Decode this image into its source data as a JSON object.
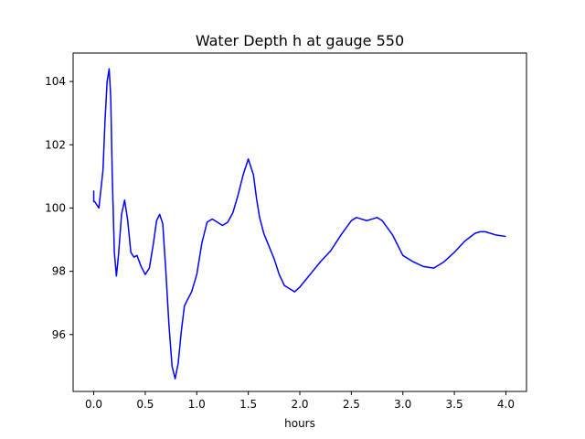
{
  "chart_data": {
    "type": "line",
    "title": "Water Depth h at gauge 550",
    "xlabel": "hours",
    "ylabel": "",
    "xlim": [
      -0.2,
      4.2
    ],
    "ylim": [
      94.2,
      104.9
    ],
    "xticks": [
      0.0,
      0.5,
      1.0,
      1.5,
      2.0,
      2.5,
      3.0,
      3.5,
      4.0
    ],
    "xtick_labels": [
      "0.0",
      "0.5",
      "1.0",
      "1.5",
      "2.0",
      "2.5",
      "3.0",
      "3.5",
      "4.0"
    ],
    "yticks": [
      96,
      98,
      100,
      102,
      104
    ],
    "ytick_labels": [
      "96",
      "98",
      "100",
      "102",
      "104"
    ],
    "grid": false,
    "color": "#0000ff",
    "series": [
      {
        "name": "",
        "x": [
          0.0,
          0.0,
          0.01,
          0.03,
          0.05,
          0.07,
          0.09,
          0.11,
          0.13,
          0.15,
          0.165,
          0.18,
          0.2,
          0.22,
          0.24,
          0.27,
          0.3,
          0.33,
          0.36,
          0.39,
          0.42,
          0.46,
          0.5,
          0.54,
          0.58,
          0.61,
          0.64,
          0.67,
          0.7,
          0.73,
          0.76,
          0.79,
          0.82,
          0.85,
          0.88,
          0.91,
          0.95,
          1.0,
          1.05,
          1.1,
          1.15,
          1.2,
          1.25,
          1.3,
          1.35,
          1.4,
          1.45,
          1.5,
          1.55,
          1.58,
          1.61,
          1.65,
          1.7,
          1.75,
          1.8,
          1.85,
          1.9,
          1.95,
          2.0,
          2.1,
          2.2,
          2.3,
          2.4,
          2.5,
          2.55,
          2.6,
          2.65,
          2.7,
          2.75,
          2.8,
          2.9,
          3.0,
          3.1,
          3.2,
          3.3,
          3.4,
          3.5,
          3.6,
          3.7,
          3.75,
          3.8,
          3.9,
          4.0
        ],
        "y": [
          100.55,
          100.2,
          100.2,
          100.1,
          100.0,
          100.6,
          101.2,
          102.8,
          104.0,
          104.4,
          103.5,
          101.0,
          98.6,
          97.85,
          98.5,
          99.8,
          100.25,
          99.6,
          98.6,
          98.45,
          98.5,
          98.15,
          97.9,
          98.1,
          98.9,
          99.6,
          99.8,
          99.5,
          98.0,
          96.3,
          95.0,
          94.6,
          95.1,
          96.1,
          96.9,
          97.1,
          97.35,
          97.9,
          98.9,
          99.55,
          99.65,
          99.55,
          99.45,
          99.55,
          99.85,
          100.4,
          101.05,
          101.55,
          101.05,
          100.3,
          99.7,
          99.2,
          98.8,
          98.4,
          97.9,
          97.55,
          97.45,
          97.35,
          97.5,
          97.9,
          98.3,
          98.65,
          99.15,
          99.6,
          99.7,
          99.65,
          99.6,
          99.65,
          99.7,
          99.6,
          99.15,
          98.5,
          98.3,
          98.15,
          98.1,
          98.3,
          98.6,
          98.95,
          99.2,
          99.25,
          99.25,
          99.15,
          99.1
        ]
      }
    ]
  }
}
